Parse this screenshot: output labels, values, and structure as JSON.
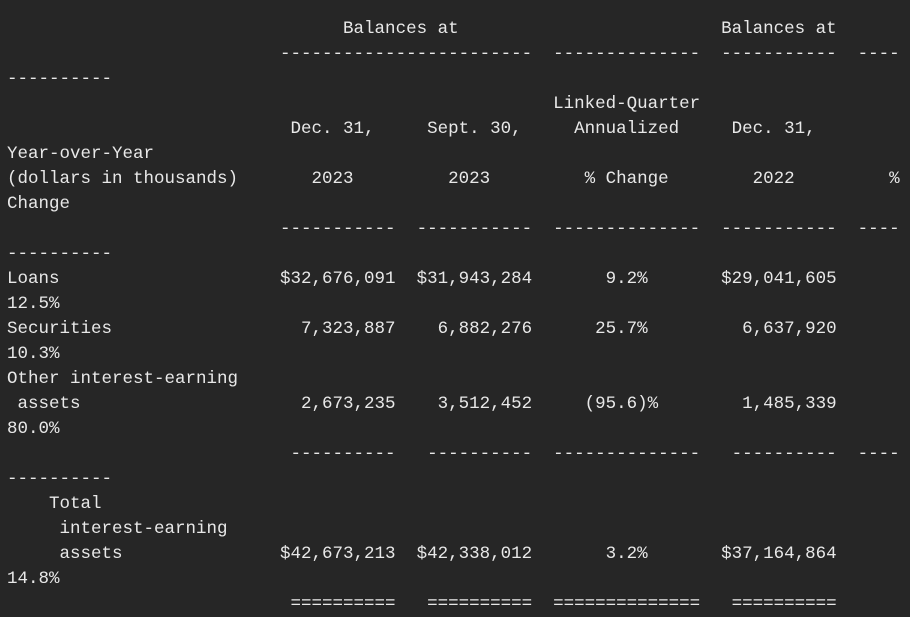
{
  "lines": [
    "                                Balances at                         Balances at",
    "                          ------------------------  --------------  -----------  ----",
    "----------",
    "                                                    Linked-Quarter",
    "                           Dec. 31,     Sept. 30,     Annualized     Dec. 31,",
    "Year-over-Year",
    "(dollars in thousands)       2023         2023         % Change        2022         %",
    "Change",
    "                          -----------  -----------  --------------  -----------  ----",
    "----------",
    "Loans                     $32,676,091  $31,943,284       9.2%       $29,041,605",
    "12.5%",
    "Securities                  7,323,887    6,882,276      25.7%         6,637,920",
    "10.3%",
    "Other interest-earning",
    " assets                     2,673,235    3,512,452     (95.6)%        1,485,339",
    "80.0%",
    "                           ----------   ----------  --------------   ----------  ----",
    "----------",
    "    Total",
    "     interest-earning",
    "     assets               $42,673,213  $42,338,012       3.2%       $37,164,864",
    "14.8%",
    "                           ==========   ==========  ==============   =========="
  ]
}
